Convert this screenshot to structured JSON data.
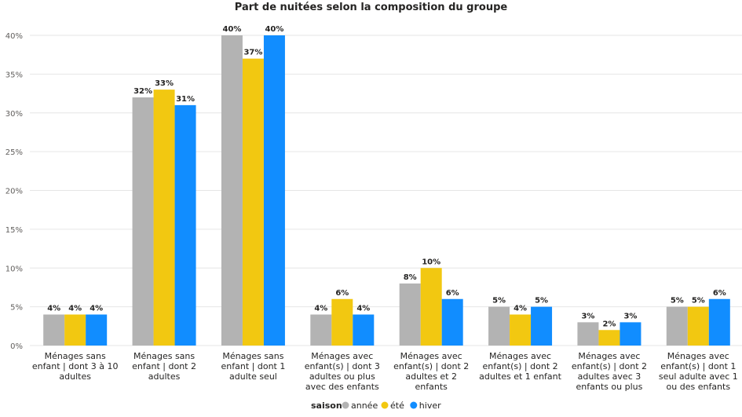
{
  "chart_data": {
    "type": "bar",
    "title": "Part de nuitées selon la composition du groupe",
    "xlabel": "",
    "ylabel": "",
    "ylim": [
      0,
      40
    ],
    "yticks": [
      0,
      5,
      10,
      15,
      20,
      25,
      30,
      35,
      40
    ],
    "ytick_format": "%",
    "grid": true,
    "legend": {
      "title": "saison",
      "position": "bottom-center"
    },
    "categories": [
      [
        "Ménages sans",
        "enfant | dont 3 à 10",
        "adultes"
      ],
      [
        "Ménages sans",
        "enfant | dont 2",
        "adultes"
      ],
      [
        "Ménages sans",
        "enfant | dont 1",
        "adulte seul"
      ],
      [
        "Ménages avec",
        "enfant(s) | dont 3",
        "adultes ou plus",
        "avec des enfants"
      ],
      [
        "Ménages avec",
        "enfant(s) | dont 2",
        "adultes et 2",
        "enfants"
      ],
      [
        "Ménages avec",
        "enfant(s) | dont 2",
        "adultes et 1 enfant"
      ],
      [
        "Ménages avec",
        "enfant(s) | dont 2",
        "adultes avec 3",
        "enfants ou plus"
      ],
      [
        "Ménages avec",
        "enfant(s) | dont 1",
        "seul adulte avec 1",
        "ou des enfants"
      ]
    ],
    "series": [
      {
        "name": "année",
        "color": "#b3b3b3",
        "values": [
          4,
          32,
          40,
          4,
          8,
          5,
          3,
          5
        ]
      },
      {
        "name": "été",
        "color": "#f2c811",
        "values": [
          4,
          33,
          37,
          6,
          10,
          4,
          2,
          5
        ]
      },
      {
        "name": "hiver",
        "color": "#118dff",
        "values": [
          4,
          31,
          40,
          4,
          6,
          5,
          3,
          6
        ]
      }
    ]
  }
}
